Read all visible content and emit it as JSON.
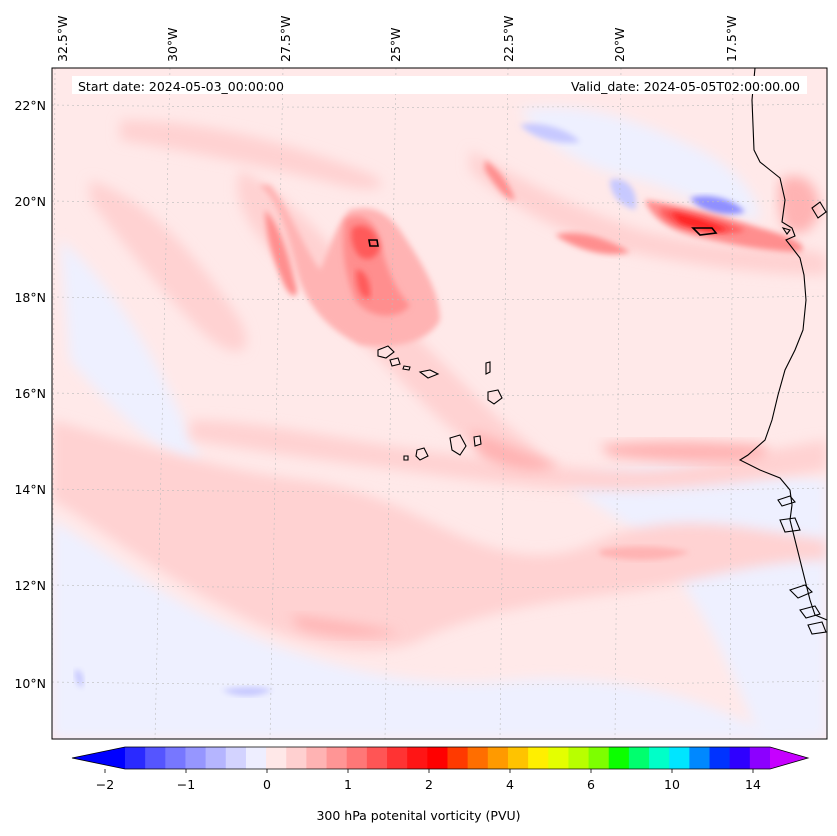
{
  "header": {
    "start_date": "Start date: 2024-05-03_00:00:00",
    "valid_date": "Valid_date: 2024-05-05T02:00:00.00"
  },
  "axes": {
    "lon_labels": [
      "32.5°W",
      "30°W",
      "27.5°W",
      "25°W",
      "22.5°W",
      "20°W",
      "17.5°W"
    ],
    "lat_labels": [
      "22°N",
      "20°N",
      "18°N",
      "16°N",
      "14°N",
      "12°N",
      "10°N"
    ]
  },
  "colorbar": {
    "label": "300 hPa potenital vorticity (PVU)",
    "tick_labels": [
      "−2",
      "−1",
      "0",
      "1",
      "2",
      "4",
      "6",
      "10",
      "14"
    ],
    "colors": [
      "#0000ff",
      "#2a2aff",
      "#5555ff",
      "#7777ff",
      "#9696ff",
      "#b5b5ff",
      "#d3d3ff",
      "#eeeeff",
      "#ffe8e8",
      "#ffd0d0",
      "#ffb3b3",
      "#ff9595",
      "#ff7777",
      "#ff5555",
      "#ff3333",
      "#ff1515",
      "#ff0000",
      "#ff3a00",
      "#ff6e00",
      "#ff9a00",
      "#ffc300",
      "#ffef00",
      "#e4ff00",
      "#b8ff00",
      "#7dff00",
      "#0cff00",
      "#00ff6e",
      "#00ffc8",
      "#00e5ff",
      "#0088ff",
      "#0033ff",
      "#2f00ff",
      "#8c00ff",
      "#c600ff"
    ]
  },
  "fill_colors": {
    "ocean": "#ffe9e9",
    "blue_light": "#eef0ff",
    "blue_mid": "#c7c9ff",
    "blue_dark": "#8f8fff",
    "pink": "#ffd2d2",
    "pink_mid": "#ffb3b3",
    "red_mid": "#ff8e8e",
    "red": "#ff5a5a",
    "red_dark": "#ff2020"
  }
}
